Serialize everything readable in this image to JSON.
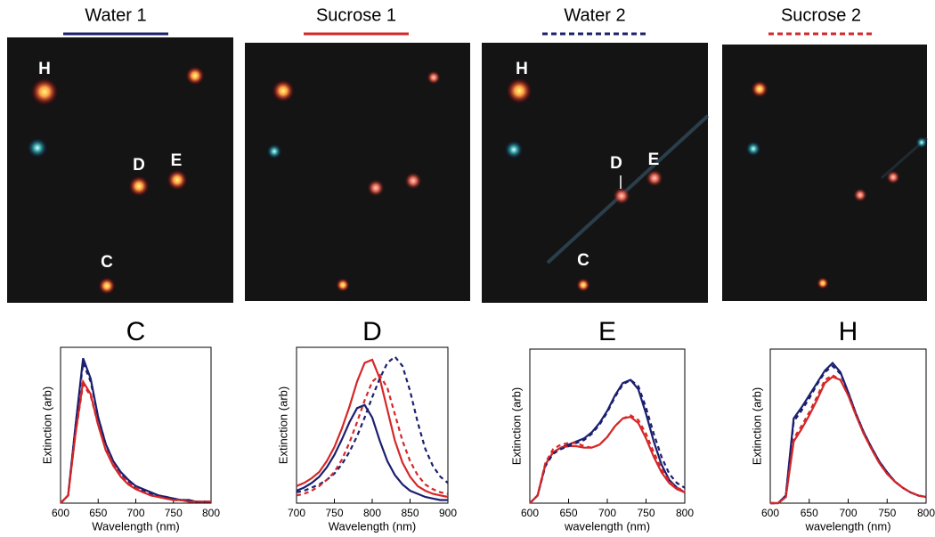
{
  "panels": [
    {
      "title": "Water 1",
      "color": "#1b1f6e",
      "dash": false,
      "labels": [
        "H",
        "D",
        "E",
        "C"
      ]
    },
    {
      "title": "Sucrose 1",
      "color": "#d62728",
      "dash": false,
      "labels": []
    },
    {
      "title": "Water 2",
      "color": "#1b1f6e",
      "dash": true,
      "labels": [
        "H",
        "D",
        "E",
        "C"
      ]
    },
    {
      "title": "Sucrose 2",
      "color": "#d62728",
      "dash": true,
      "labels": []
    }
  ],
  "chart_data": [
    {
      "type": "line",
      "title": "C",
      "x_label": "Wavelength (nm)",
      "y_label": "Extinction (arb)",
      "x": [
        600,
        610,
        620,
        630,
        640,
        650,
        660,
        670,
        680,
        690,
        700,
        710,
        720,
        730,
        740,
        750,
        760,
        770,
        780,
        790,
        800
      ],
      "xlim": [
        600,
        800
      ],
      "xticks": [
        600,
        650,
        700,
        750,
        800
      ],
      "ylim": [
        0,
        1
      ],
      "series": [
        {
          "color": "#1b1f6e",
          "dash": false,
          "values": [
            0,
            0.05,
            0.5,
            0.93,
            0.8,
            0.55,
            0.38,
            0.27,
            0.2,
            0.15,
            0.11,
            0.09,
            0.07,
            0.05,
            0.04,
            0.03,
            0.02,
            0.02,
            0.01,
            0.01,
            0.01
          ]
        },
        {
          "color": "#d62728",
          "dash": false,
          "values": [
            0,
            0.05,
            0.45,
            0.78,
            0.7,
            0.5,
            0.34,
            0.24,
            0.17,
            0.12,
            0.09,
            0.07,
            0.05,
            0.04,
            0.03,
            0.02,
            0.02,
            0.01,
            0.01,
            0.01,
            0.01
          ]
        },
        {
          "color": "#1b1f6e",
          "dash": true,
          "values": [
            0,
            0.05,
            0.5,
            0.9,
            0.78,
            0.55,
            0.38,
            0.27,
            0.19,
            0.14,
            0.1,
            0.08,
            0.06,
            0.05,
            0.04,
            0.03,
            0.02,
            0.02,
            0.01,
            0.01,
            0.01
          ]
        },
        {
          "color": "#d62728",
          "dash": true,
          "values": [
            0,
            0.05,
            0.45,
            0.76,
            0.69,
            0.5,
            0.35,
            0.25,
            0.18,
            0.13,
            0.1,
            0.07,
            0.05,
            0.04,
            0.03,
            0.02,
            0.02,
            0.01,
            0.01,
            0.01,
            0.01
          ]
        }
      ]
    },
    {
      "type": "line",
      "title": "D",
      "x_label": "Wavelength (nm)",
      "y_label": "Extinction (arb)",
      "x": [
        700,
        710,
        720,
        730,
        740,
        750,
        760,
        770,
        780,
        790,
        800,
        810,
        820,
        830,
        840,
        850,
        860,
        870,
        880,
        890,
        900
      ],
      "xlim": [
        700,
        900
      ],
      "xticks": [
        700,
        750,
        800,
        850,
        900
      ],
      "ylim": [
        0,
        1
      ],
      "series": [
        {
          "color": "#1b1f6e",
          "dash": false,
          "values": [
            0.08,
            0.1,
            0.13,
            0.17,
            0.23,
            0.31,
            0.41,
            0.52,
            0.61,
            0.63,
            0.55,
            0.4,
            0.27,
            0.18,
            0.12,
            0.08,
            0.06,
            0.04,
            0.03,
            0.02,
            0.02
          ]
        },
        {
          "color": "#d62728",
          "dash": false,
          "values": [
            0.11,
            0.13,
            0.16,
            0.2,
            0.27,
            0.36,
            0.48,
            0.62,
            0.78,
            0.9,
            0.92,
            0.8,
            0.6,
            0.4,
            0.26,
            0.17,
            0.11,
            0.08,
            0.06,
            0.05,
            0.04
          ]
        },
        {
          "color": "#1b1f6e",
          "dash": true,
          "values": [
            0.07,
            0.08,
            0.1,
            0.12,
            0.15,
            0.19,
            0.25,
            0.33,
            0.43,
            0.55,
            0.68,
            0.8,
            0.9,
            0.94,
            0.88,
            0.72,
            0.52,
            0.35,
            0.24,
            0.17,
            0.13
          ]
        },
        {
          "color": "#d62728",
          "dash": true,
          "values": [
            0.05,
            0.06,
            0.08,
            0.11,
            0.15,
            0.2,
            0.28,
            0.39,
            0.52,
            0.66,
            0.78,
            0.82,
            0.74,
            0.57,
            0.4,
            0.27,
            0.18,
            0.12,
            0.09,
            0.07,
            0.06
          ]
        }
      ]
    },
    {
      "type": "line",
      "title": "E",
      "x_label": "wavelength (nm)",
      "y_label": "Extinction (arb)",
      "x": [
        600,
        610,
        620,
        630,
        640,
        650,
        660,
        670,
        680,
        690,
        700,
        710,
        720,
        730,
        740,
        750,
        760,
        770,
        780,
        790,
        800
      ],
      "xlim": [
        600,
        800
      ],
      "xticks": [
        600,
        650,
        700,
        750,
        800
      ],
      "ylim": [
        0,
        1
      ],
      "series": [
        {
          "color": "#1b1f6e",
          "dash": false,
          "values": [
            0,
            0.05,
            0.25,
            0.33,
            0.36,
            0.38,
            0.4,
            0.42,
            0.46,
            0.52,
            0.6,
            0.7,
            0.78,
            0.8,
            0.74,
            0.58,
            0.4,
            0.25,
            0.15,
            0.1,
            0.07
          ]
        },
        {
          "color": "#d62728",
          "dash": false,
          "values": [
            0,
            0.05,
            0.25,
            0.33,
            0.36,
            0.37,
            0.37,
            0.36,
            0.36,
            0.38,
            0.43,
            0.5,
            0.55,
            0.56,
            0.52,
            0.42,
            0.3,
            0.2,
            0.13,
            0.09,
            0.07
          ]
        },
        {
          "color": "#1b1f6e",
          "dash": true,
          "values": [
            0,
            0.05,
            0.24,
            0.32,
            0.35,
            0.37,
            0.39,
            0.41,
            0.45,
            0.51,
            0.59,
            0.69,
            0.77,
            0.8,
            0.76,
            0.62,
            0.45,
            0.3,
            0.19,
            0.13,
            0.1
          ]
        },
        {
          "color": "#d62728",
          "dash": true,
          "values": [
            0,
            0.05,
            0.26,
            0.35,
            0.38,
            0.39,
            0.39,
            0.37,
            0.36,
            0.38,
            0.43,
            0.5,
            0.55,
            0.57,
            0.54,
            0.45,
            0.33,
            0.22,
            0.14,
            0.1,
            0.08
          ]
        }
      ]
    },
    {
      "type": "line",
      "title": "H",
      "x_label": "wavelength (nm)",
      "y_label": "Extinction (arb)",
      "x": [
        600,
        610,
        620,
        630,
        640,
        650,
        660,
        670,
        680,
        690,
        700,
        710,
        720,
        730,
        740,
        750,
        760,
        770,
        780,
        790,
        800
      ],
      "xlim": [
        600,
        800
      ],
      "xticks": [
        600,
        650,
        700,
        750,
        800
      ],
      "ylim": [
        0,
        1
      ],
      "series": [
        {
          "color": "#1b1f6e",
          "dash": false,
          "values": [
            0,
            0,
            0.05,
            0.55,
            0.62,
            0.7,
            0.78,
            0.86,
            0.91,
            0.85,
            0.72,
            0.58,
            0.46,
            0.36,
            0.27,
            0.2,
            0.14,
            0.1,
            0.07,
            0.05,
            0.04
          ]
        },
        {
          "color": "#d62728",
          "dash": false,
          "values": [
            0,
            0,
            0.04,
            0.4,
            0.48,
            0.57,
            0.67,
            0.78,
            0.82,
            0.8,
            0.7,
            0.57,
            0.45,
            0.35,
            0.26,
            0.19,
            0.14,
            0.1,
            0.07,
            0.05,
            0.04
          ]
        },
        {
          "color": "#1b1f6e",
          "dash": true,
          "values": [
            0,
            0,
            0.05,
            0.53,
            0.6,
            0.68,
            0.77,
            0.85,
            0.89,
            0.84,
            0.72,
            0.58,
            0.46,
            0.36,
            0.27,
            0.2,
            0.14,
            0.1,
            0.07,
            0.05,
            0.04
          ]
        },
        {
          "color": "#d62728",
          "dash": true,
          "values": [
            0,
            0,
            0.04,
            0.42,
            0.5,
            0.59,
            0.69,
            0.8,
            0.83,
            0.8,
            0.7,
            0.57,
            0.45,
            0.35,
            0.26,
            0.19,
            0.14,
            0.1,
            0.07,
            0.05,
            0.04
          ]
        }
      ]
    }
  ]
}
